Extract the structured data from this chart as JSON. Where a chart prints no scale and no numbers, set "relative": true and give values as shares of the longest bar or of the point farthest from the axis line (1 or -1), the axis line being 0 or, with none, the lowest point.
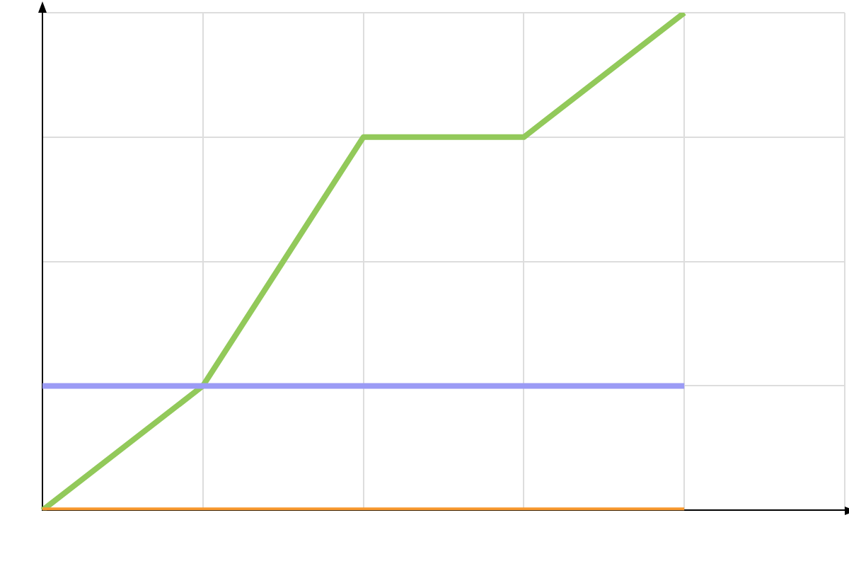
{
  "chart_data": {
    "type": "line",
    "relative": true,
    "categories": [
      null,
      null,
      null,
      null,
      null,
      null
    ],
    "grid": true,
    "legend": false,
    "marker": "none",
    "line_style": "solid",
    "series": [
      {
        "color": "#92c95a",
        "values": [
          0,
          0.25,
          0.75,
          0.75,
          1,
          null
        ]
      },
      {
        "color": "#9b9bf5",
        "values": [
          0.25,
          0.25,
          0.25,
          0.25,
          0.25,
          null
        ]
      },
      {
        "color": "#f7992f",
        "values": [
          0,
          0,
          0,
          0,
          0,
          null
        ]
      }
    ]
  }
}
